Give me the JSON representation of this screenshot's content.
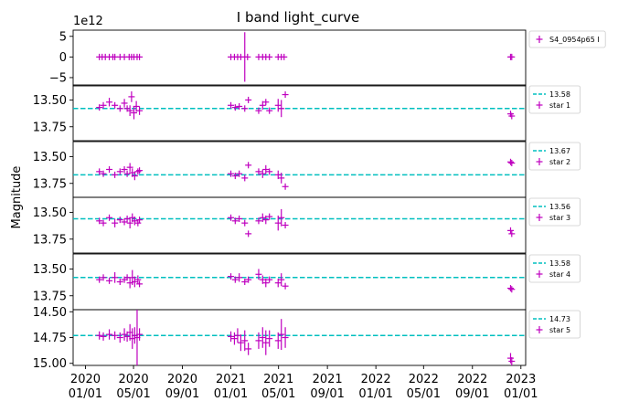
{
  "chart_data": {
    "type": "scatter",
    "title": "I band light_curve",
    "ylabel": "Magnitude",
    "x_tick_labels": [
      [
        "2020",
        "01/01"
      ],
      [
        "2020",
        "05/01"
      ],
      [
        "2020",
        "09/01"
      ],
      [
        "2021",
        "01/01"
      ],
      [
        "2021",
        "05/01"
      ],
      [
        "2021",
        "09/01"
      ],
      [
        "2022",
        "01/01"
      ],
      [
        "2022",
        "05/01"
      ],
      [
        "2022",
        "09/01"
      ],
      [
        "2023",
        "01/01"
      ]
    ],
    "x_ticks": [
      "2020-01-01",
      "2020-05-01",
      "2020-09-01",
      "2021-01-01",
      "2021-05-01",
      "2021-09-01",
      "2022-01-01",
      "2022-05-01",
      "2022-09-01",
      "2023-01-01"
    ],
    "xlim": [
      "2019-12-01",
      "2023-01-13"
    ],
    "colors": {
      "data": "#bf00bf",
      "reference_line": "#00bfbf"
    },
    "panels": [
      {
        "name": "S4_0954p65 I",
        "legend": [
          "S4_0954p65 I"
        ],
        "y_offset_label": "1e12",
        "ylim": [
          6500000000000.0,
          -7000000000000.0
        ],
        "yticks": [
          -5000000000000.0,
          0,
          5000000000000.0
        ],
        "ytick_labels": [
          "−5",
          "0",
          "5"
        ],
        "points": [
          {
            "x": "2020-02-05",
            "y": 0,
            "yerr": 0
          },
          {
            "x": "2020-02-12",
            "y": 0,
            "yerr": 0
          },
          {
            "x": "2020-02-20",
            "y": 0,
            "yerr": 0
          },
          {
            "x": "2020-03-01",
            "y": 0,
            "yerr": 0
          },
          {
            "x": "2020-03-10",
            "y": 0,
            "yerr": 0
          },
          {
            "x": "2020-03-15",
            "y": 0,
            "yerr": 0
          },
          {
            "x": "2020-03-28",
            "y": 0,
            "yerr": 0
          },
          {
            "x": "2020-04-08",
            "y": 0,
            "yerr": 0
          },
          {
            "x": "2020-04-20",
            "y": 0,
            "yerr": 0
          },
          {
            "x": "2020-04-26",
            "y": 0,
            "yerr": 0
          },
          {
            "x": "2020-05-02",
            "y": 0,
            "yerr": 0
          },
          {
            "x": "2020-05-10",
            "y": 0,
            "yerr": 0
          },
          {
            "x": "2020-05-16",
            "y": 0,
            "yerr": 0
          },
          {
            "x": "2021-01-01",
            "y": 0,
            "yerr": 0
          },
          {
            "x": "2021-01-10",
            "y": 0,
            "yerr": 0
          },
          {
            "x": "2021-01-18",
            "y": 0,
            "yerr": 0
          },
          {
            "x": "2021-01-26",
            "y": 0,
            "yerr": 0
          },
          {
            "x": "2021-02-05",
            "y": 0,
            "yerr": 6000000000000.0
          },
          {
            "x": "2021-02-12",
            "y": 0,
            "yerr": 0
          },
          {
            "x": "2021-03-12",
            "y": 0,
            "yerr": 0
          },
          {
            "x": "2021-03-22",
            "y": 0,
            "yerr": 0
          },
          {
            "x": "2021-03-30",
            "y": 0,
            "yerr": 0
          },
          {
            "x": "2021-04-08",
            "y": 0,
            "yerr": 0
          },
          {
            "x": "2021-04-30",
            "y": 0,
            "yerr": 0
          },
          {
            "x": "2021-05-08",
            "y": 0,
            "yerr": 0
          },
          {
            "x": "2021-05-15",
            "y": 0,
            "yerr": 0
          },
          {
            "x": "2022-12-06",
            "y": 0,
            "yerr": 0
          },
          {
            "x": "2022-12-09",
            "y": 0,
            "yerr": 0
          }
        ]
      },
      {
        "name": "star 1",
        "legend": [
          "13.58",
          "star 1"
        ],
        "reference": 13.58,
        "ylim": [
          13.36,
          13.88
        ],
        "yticks": [
          13.5,
          13.75
        ],
        "ytick_labels": [
          "13.50",
          "13.75"
        ],
        "points": [
          {
            "x": "2020-02-05",
            "y": 13.57,
            "yerr": 0.02
          },
          {
            "x": "2020-02-15",
            "y": 13.55,
            "yerr": 0.03
          },
          {
            "x": "2020-03-01",
            "y": 13.52,
            "yerr": 0.04
          },
          {
            "x": "2020-03-15",
            "y": 13.55,
            "yerr": 0.02
          },
          {
            "x": "2020-03-28",
            "y": 13.58,
            "yerr": 0.03
          },
          {
            "x": "2020-04-08",
            "y": 13.53,
            "yerr": 0.04
          },
          {
            "x": "2020-04-15",
            "y": 13.58,
            "yerr": 0.03
          },
          {
            "x": "2020-04-22",
            "y": 13.6,
            "yerr": 0.05
          },
          {
            "x": "2020-04-26",
            "y": 13.47,
            "yerr": 0.05
          },
          {
            "x": "2020-05-02",
            "y": 13.62,
            "yerr": 0.06
          },
          {
            "x": "2020-05-08",
            "y": 13.56,
            "yerr": 0.05
          },
          {
            "x": "2020-05-16",
            "y": 13.6,
            "yerr": 0.04
          },
          {
            "x": "2021-01-01",
            "y": 13.55,
            "yerr": 0.02
          },
          {
            "x": "2021-01-12",
            "y": 13.57,
            "yerr": 0.03
          },
          {
            "x": "2021-01-22",
            "y": 13.56,
            "yerr": 0.03
          },
          {
            "x": "2021-02-05",
            "y": 13.58,
            "yerr": 0.02
          },
          {
            "x": "2021-02-14",
            "y": 13.5,
            "yerr": 0.02
          },
          {
            "x": "2021-03-12",
            "y": 13.6,
            "yerr": 0.03
          },
          {
            "x": "2021-03-22",
            "y": 13.55,
            "yerr": 0.04
          },
          {
            "x": "2021-03-30",
            "y": 13.52,
            "yerr": 0.03
          },
          {
            "x": "2021-04-08",
            "y": 13.6,
            "yerr": 0.03
          },
          {
            "x": "2021-04-30",
            "y": 13.55,
            "yerr": 0.06
          },
          {
            "x": "2021-05-08",
            "y": 13.58,
            "yerr": 0.08
          },
          {
            "x": "2021-05-18",
            "y": 13.45,
            "yerr": 0.03
          },
          {
            "x": "2022-12-06",
            "y": 13.63,
            "yerr": 0.03
          },
          {
            "x": "2022-12-09",
            "y": 13.65,
            "yerr": 0.03
          }
        ]
      },
      {
        "name": "star 2",
        "legend": [
          "13.67",
          "star 2"
        ],
        "reference": 13.67,
        "ylim": [
          13.36,
          13.88
        ],
        "yticks": [
          13.5,
          13.75
        ],
        "ytick_labels": [
          "13.50",
          "13.75"
        ],
        "points": [
          {
            "x": "2020-02-05",
            "y": 13.64,
            "yerr": 0.02
          },
          {
            "x": "2020-02-15",
            "y": 13.66,
            "yerr": 0.02
          },
          {
            "x": "2020-03-01",
            "y": 13.62,
            "yerr": 0.03
          },
          {
            "x": "2020-03-15",
            "y": 13.67,
            "yerr": 0.02
          },
          {
            "x": "2020-03-28",
            "y": 13.64,
            "yerr": 0.03
          },
          {
            "x": "2020-04-08",
            "y": 13.62,
            "yerr": 0.03
          },
          {
            "x": "2020-04-15",
            "y": 13.66,
            "yerr": 0.02
          },
          {
            "x": "2020-04-22",
            "y": 13.6,
            "yerr": 0.04
          },
          {
            "x": "2020-04-28",
            "y": 13.65,
            "yerr": 0.04
          },
          {
            "x": "2020-05-04",
            "y": 13.68,
            "yerr": 0.04
          },
          {
            "x": "2020-05-12",
            "y": 13.64,
            "yerr": 0.03
          },
          {
            "x": "2020-05-16",
            "y": 13.63,
            "yerr": 0.03
          },
          {
            "x": "2021-01-01",
            "y": 13.66,
            "yerr": 0.02
          },
          {
            "x": "2021-01-12",
            "y": 13.68,
            "yerr": 0.03
          },
          {
            "x": "2021-01-22",
            "y": 13.66,
            "yerr": 0.03
          },
          {
            "x": "2021-02-05",
            "y": 13.7,
            "yerr": 0.03
          },
          {
            "x": "2021-02-14",
            "y": 13.58,
            "yerr": 0.02
          },
          {
            "x": "2021-03-12",
            "y": 13.64,
            "yerr": 0.03
          },
          {
            "x": "2021-03-22",
            "y": 13.66,
            "yerr": 0.04
          },
          {
            "x": "2021-03-30",
            "y": 13.62,
            "yerr": 0.04
          },
          {
            "x": "2021-04-08",
            "y": 13.64,
            "yerr": 0.03
          },
          {
            "x": "2021-04-30",
            "y": 13.67,
            "yerr": 0.04
          },
          {
            "x": "2021-05-08",
            "y": 13.7,
            "yerr": 0.05
          },
          {
            "x": "2021-05-18",
            "y": 13.78,
            "yerr": 0.03
          },
          {
            "x": "2022-12-06",
            "y": 13.55,
            "yerr": 0.02
          },
          {
            "x": "2022-12-09",
            "y": 13.56,
            "yerr": 0.02
          }
        ]
      },
      {
        "name": "star 3",
        "legend": [
          "13.56",
          "star 3"
        ],
        "reference": 13.56,
        "ylim": [
          13.36,
          13.88
        ],
        "yticks": [
          13.5,
          13.75
        ],
        "ytick_labels": [
          "13.50",
          "13.75"
        ],
        "points": [
          {
            "x": "2020-02-05",
            "y": 13.58,
            "yerr": 0.02
          },
          {
            "x": "2020-02-15",
            "y": 13.6,
            "yerr": 0.02
          },
          {
            "x": "2020-03-01",
            "y": 13.55,
            "yerr": 0.03
          },
          {
            "x": "2020-03-15",
            "y": 13.6,
            "yerr": 0.04
          },
          {
            "x": "2020-03-28",
            "y": 13.57,
            "yerr": 0.03
          },
          {
            "x": "2020-04-08",
            "y": 13.59,
            "yerr": 0.03
          },
          {
            "x": "2020-04-15",
            "y": 13.56,
            "yerr": 0.02
          },
          {
            "x": "2020-04-22",
            "y": 13.6,
            "yerr": 0.05
          },
          {
            "x": "2020-04-28",
            "y": 13.55,
            "yerr": 0.04
          },
          {
            "x": "2020-05-04",
            "y": 13.58,
            "yerr": 0.04
          },
          {
            "x": "2020-05-12",
            "y": 13.6,
            "yerr": 0.03
          },
          {
            "x": "2020-05-16",
            "y": 13.57,
            "yerr": 0.03
          },
          {
            "x": "2021-01-01",
            "y": 13.55,
            "yerr": 0.02
          },
          {
            "x": "2021-01-12",
            "y": 13.58,
            "yerr": 0.03
          },
          {
            "x": "2021-01-22",
            "y": 13.56,
            "yerr": 0.03
          },
          {
            "x": "2021-02-05",
            "y": 13.6,
            "yerr": 0.02
          },
          {
            "x": "2021-02-14",
            "y": 13.7,
            "yerr": 0.02
          },
          {
            "x": "2021-03-12",
            "y": 13.58,
            "yerr": 0.03
          },
          {
            "x": "2021-03-22",
            "y": 13.55,
            "yerr": 0.04
          },
          {
            "x": "2021-03-30",
            "y": 13.57,
            "yerr": 0.04
          },
          {
            "x": "2021-04-08",
            "y": 13.54,
            "yerr": 0.03
          },
          {
            "x": "2021-04-30",
            "y": 13.6,
            "yerr": 0.07
          },
          {
            "x": "2021-05-08",
            "y": 13.55,
            "yerr": 0.08
          },
          {
            "x": "2021-05-18",
            "y": 13.62,
            "yerr": 0.03
          },
          {
            "x": "2022-12-06",
            "y": 13.67,
            "yerr": 0.03
          },
          {
            "x": "2022-12-09",
            "y": 13.7,
            "yerr": 0.03
          }
        ]
      },
      {
        "name": "star 4",
        "legend": [
          "13.58",
          "star 4"
        ],
        "reference": 13.58,
        "ylim": [
          13.36,
          13.88
        ],
        "yticks": [
          13.5,
          13.75
        ],
        "ytick_labels": [
          "13.50",
          "13.75"
        ],
        "points": [
          {
            "x": "2020-02-05",
            "y": 13.6,
            "yerr": 0.02
          },
          {
            "x": "2020-02-15",
            "y": 13.58,
            "yerr": 0.03
          },
          {
            "x": "2020-03-01",
            "y": 13.61,
            "yerr": 0.03
          },
          {
            "x": "2020-03-15",
            "y": 13.58,
            "yerr": 0.05
          },
          {
            "x": "2020-03-28",
            "y": 13.62,
            "yerr": 0.03
          },
          {
            "x": "2020-04-08",
            "y": 13.6,
            "yerr": 0.03
          },
          {
            "x": "2020-04-15",
            "y": 13.58,
            "yerr": 0.03
          },
          {
            "x": "2020-04-22",
            "y": 13.63,
            "yerr": 0.05
          },
          {
            "x": "2020-04-28",
            "y": 13.58,
            "yerr": 0.07
          },
          {
            "x": "2020-05-04",
            "y": 13.62,
            "yerr": 0.05
          },
          {
            "x": "2020-05-12",
            "y": 13.6,
            "yerr": 0.04
          },
          {
            "x": "2020-05-16",
            "y": 13.64,
            "yerr": 0.03
          },
          {
            "x": "2021-01-01",
            "y": 13.57,
            "yerr": 0.02
          },
          {
            "x": "2021-01-12",
            "y": 13.6,
            "yerr": 0.03
          },
          {
            "x": "2021-01-22",
            "y": 13.58,
            "yerr": 0.04
          },
          {
            "x": "2021-02-05",
            "y": 13.62,
            "yerr": 0.03
          },
          {
            "x": "2021-02-14",
            "y": 13.6,
            "yerr": 0.02
          },
          {
            "x": "2021-03-12",
            "y": 13.55,
            "yerr": 0.05
          },
          {
            "x": "2021-03-22",
            "y": 13.6,
            "yerr": 0.04
          },
          {
            "x": "2021-03-30",
            "y": 13.63,
            "yerr": 0.04
          },
          {
            "x": "2021-04-08",
            "y": 13.6,
            "yerr": 0.03
          },
          {
            "x": "2021-04-30",
            "y": 13.63,
            "yerr": 0.04
          },
          {
            "x": "2021-05-08",
            "y": 13.6,
            "yerr": 0.06
          },
          {
            "x": "2021-05-18",
            "y": 13.66,
            "yerr": 0.03
          },
          {
            "x": "2022-12-06",
            "y": 13.68,
            "yerr": 0.02
          },
          {
            "x": "2022-12-09",
            "y": 13.69,
            "yerr": 0.02
          }
        ]
      },
      {
        "name": "star 5",
        "legend": [
          "14.73",
          "star 5"
        ],
        "reference": 14.73,
        "ylim": [
          14.48,
          15.02
        ],
        "yticks": [
          14.5,
          14.75,
          15.0
        ],
        "ytick_labels": [
          "14.50",
          "14.75",
          "15.00"
        ],
        "points": [
          {
            "x": "2020-02-05",
            "y": 14.73,
            "yerr": 0.04
          },
          {
            "x": "2020-02-15",
            "y": 14.74,
            "yerr": 0.04
          },
          {
            "x": "2020-03-01",
            "y": 14.72,
            "yerr": 0.05
          },
          {
            "x": "2020-03-15",
            "y": 14.73,
            "yerr": 0.04
          },
          {
            "x": "2020-03-28",
            "y": 14.75,
            "yerr": 0.05
          },
          {
            "x": "2020-04-08",
            "y": 14.72,
            "yerr": 0.06
          },
          {
            "x": "2020-04-15",
            "y": 14.74,
            "yerr": 0.05
          },
          {
            "x": "2020-04-22",
            "y": 14.7,
            "yerr": 0.08
          },
          {
            "x": "2020-04-28",
            "y": 14.76,
            "yerr": 0.1
          },
          {
            "x": "2020-05-04",
            "y": 14.73,
            "yerr": 0.08
          },
          {
            "x": "2020-05-10",
            "y": 14.75,
            "yerr": 0.3
          },
          {
            "x": "2020-05-16",
            "y": 14.72,
            "yerr": 0.06
          },
          {
            "x": "2021-01-01",
            "y": 14.74,
            "yerr": 0.05
          },
          {
            "x": "2021-01-10",
            "y": 14.76,
            "yerr": 0.06
          },
          {
            "x": "2021-01-18",
            "y": 14.73,
            "yerr": 0.07
          },
          {
            "x": "2021-01-26",
            "y": 14.8,
            "yerr": 0.08
          },
          {
            "x": "2021-02-05",
            "y": 14.78,
            "yerr": 0.1
          },
          {
            "x": "2021-02-14",
            "y": 14.86,
            "yerr": 0.06
          },
          {
            "x": "2021-03-12",
            "y": 14.78,
            "yerr": 0.08
          },
          {
            "x": "2021-03-22",
            "y": 14.75,
            "yerr": 0.1
          },
          {
            "x": "2021-03-30",
            "y": 14.8,
            "yerr": 0.12
          },
          {
            "x": "2021-04-08",
            "y": 14.76,
            "yerr": 0.08
          },
          {
            "x": "2021-04-30",
            "y": 14.78,
            "yerr": 0.08
          },
          {
            "x": "2021-05-08",
            "y": 14.72,
            "yerr": 0.15
          },
          {
            "x": "2021-05-18",
            "y": 14.75,
            "yerr": 0.1
          },
          {
            "x": "2022-12-06",
            "y": 14.95,
            "yerr": 0.05
          },
          {
            "x": "2022-12-09",
            "y": 14.98,
            "yerr": 0.04
          }
        ]
      }
    ]
  }
}
